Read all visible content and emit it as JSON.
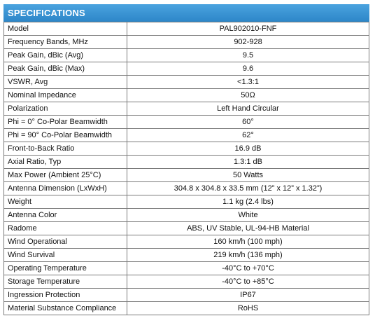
{
  "header": {
    "title": "SPECIFICATIONS"
  },
  "rows": [
    {
      "label": "Model",
      "value": "PAL902010-FNF"
    },
    {
      "label": "Frequency Bands, MHz",
      "value": "902-928"
    },
    {
      "label": "Peak Gain, dBic (Avg)",
      "value": "9.5"
    },
    {
      "label": "Peak Gain, dBic (Max)",
      "value": "9.6"
    },
    {
      "label": "VSWR, Avg",
      "value": "<1.3:1"
    },
    {
      "label": "Nominal Impedance",
      "value": "50Ω"
    },
    {
      "label": "Polarization",
      "value": "Left Hand Circular"
    },
    {
      "label": "Phi = 0° Co-Polar Beamwidth",
      "value": "60°"
    },
    {
      "label": "Phi = 90° Co-Polar Beamwidth",
      "value": "62°"
    },
    {
      "label": "Front-to-Back Ratio",
      "value": "16.9 dB"
    },
    {
      "label": "Axial Ratio, Typ",
      "value": "1.3:1 dB"
    },
    {
      "label": "Max Power (Ambient 25°C)",
      "value": "50 Watts"
    },
    {
      "label": "Antenna Dimension (LxWxH)",
      "value": "304.8 x 304.8 x 33.5 mm (12” x 12” x 1.32”)"
    },
    {
      "label": "Weight",
      "value": "1.1 kg (2.4 lbs)"
    },
    {
      "label": "Antenna Color",
      "value": "White"
    },
    {
      "label": "Radome",
      "value": "ABS, UV Stable, UL-94-HB Material"
    },
    {
      "label": "Wind Operational",
      "value": "160 km/h (100 mph)"
    },
    {
      "label": "Wind Survival",
      "value": "219 km/h (136 mph)"
    },
    {
      "label": "Operating Temperature",
      "value": "-40°C to +70°C"
    },
    {
      "label": "Storage Temperature",
      "value": "-40°C to +85°C"
    },
    {
      "label": "Ingression Protection",
      "value": "IP67"
    },
    {
      "label": "Material Substance Compliance",
      "value": "RoHS"
    }
  ]
}
